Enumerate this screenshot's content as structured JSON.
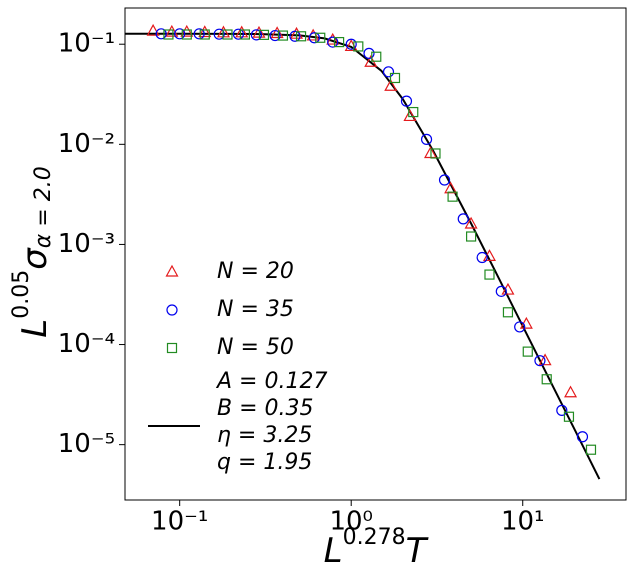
{
  "chart_data": {
    "type": "scatter",
    "log_x": true,
    "log_y": true,
    "xlim": [
      0.048,
      40
    ],
    "ylim": [
      2.8e-06,
      0.23
    ],
    "xticks": [
      {
        "value": 0.1,
        "label": "10⁻¹"
      },
      {
        "value": 1,
        "label": "10⁰"
      },
      {
        "value": 10,
        "label": "10¹"
      }
    ],
    "yticks": [
      {
        "value": 1e-05,
        "label": "10⁻⁵"
      },
      {
        "value": 0.0001,
        "label": "10⁻⁴"
      },
      {
        "value": 0.001,
        "label": "10⁻³"
      },
      {
        "value": 0.01,
        "label": "10⁻²"
      },
      {
        "value": 0.1,
        "label": "10⁻¹"
      }
    ],
    "x_label": {
      "base": "L",
      "exp": "0.278",
      "sym": "T"
    },
    "y_label": {
      "base": "L",
      "exp": "0.05",
      "sym": "σ",
      "sub": "α = 2.0"
    },
    "series": [
      {
        "name": "N = 20",
        "marker": "triangle",
        "color": "#e41a1c",
        "x": [
          0.07,
          0.09,
          0.11,
          0.14,
          0.18,
          0.23,
          0.29,
          0.37,
          0.48,
          0.6,
          0.78,
          1.0,
          1.3,
          1.7,
          2.2,
          2.9,
          3.8,
          5.0,
          6.4,
          8.2,
          10.5,
          13.5,
          19
        ],
        "values": [
          0.135,
          0.132,
          0.132,
          0.131,
          0.13,
          0.13,
          0.129,
          0.128,
          0.126,
          0.121,
          0.11,
          0.095,
          0.066,
          0.038,
          0.019,
          0.0081,
          0.0036,
          0.0016,
          0.00076,
          0.00035,
          0.00016,
          6.9e-05,
          3.3e-05
        ]
      },
      {
        "name": "N = 35",
        "marker": "circle",
        "color": "#0000ee",
        "x": [
          0.078,
          0.1,
          0.13,
          0.17,
          0.22,
          0.28,
          0.36,
          0.47,
          0.61,
          0.78,
          1.0,
          1.27,
          1.65,
          2.1,
          2.75,
          3.5,
          4.5,
          5.8,
          7.5,
          9.6,
          12.6,
          16.9,
          22.3
        ],
        "values": [
          0.127,
          0.127,
          0.127,
          0.126,
          0.126,
          0.124,
          0.122,
          0.12,
          0.116,
          0.105,
          0.1,
          0.081,
          0.053,
          0.027,
          0.0112,
          0.0044,
          0.0018,
          0.00074,
          0.00034,
          0.00015,
          6.9e-05,
          2.2e-05,
          1.2e-05
        ]
      },
      {
        "name": "N = 50",
        "marker": "square",
        "color": "#228b22",
        "x": [
          0.086,
          0.11,
          0.14,
          0.19,
          0.24,
          0.31,
          0.4,
          0.51,
          0.66,
          0.85,
          1.1,
          1.4,
          1.8,
          2.3,
          3.1,
          3.9,
          5.0,
          6.4,
          8.2,
          10.7,
          13.8,
          18.6,
          25
        ],
        "values": [
          0.125,
          0.125,
          0.125,
          0.125,
          0.125,
          0.124,
          0.122,
          0.12,
          0.116,
          0.105,
          0.095,
          0.075,
          0.046,
          0.021,
          0.0081,
          0.003,
          0.0012,
          0.0005,
          0.00021,
          8.5e-05,
          4.5e-05,
          1.9e-05,
          8.9e-06
        ]
      }
    ],
    "fit": {
      "color": "#000000",
      "legend": [
        "A = 0.127",
        "B = 0.35",
        "η = 3.25",
        "q = 1.95"
      ],
      "x": [
        0.048,
        0.1,
        0.2,
        0.3,
        0.5,
        0.7,
        1,
        1.5,
        2,
        3,
        5,
        7,
        10,
        15,
        20,
        28
      ],
      "values": [
        0.127,
        0.127,
        0.1268,
        0.1261,
        0.1225,
        0.1144,
        0.0939,
        0.0543,
        0.0283,
        0.00867,
        0.001618,
        0.000517,
        0.000153,
        3.83e-05,
        1.43e-05,
        4.53e-06
      ]
    }
  }
}
